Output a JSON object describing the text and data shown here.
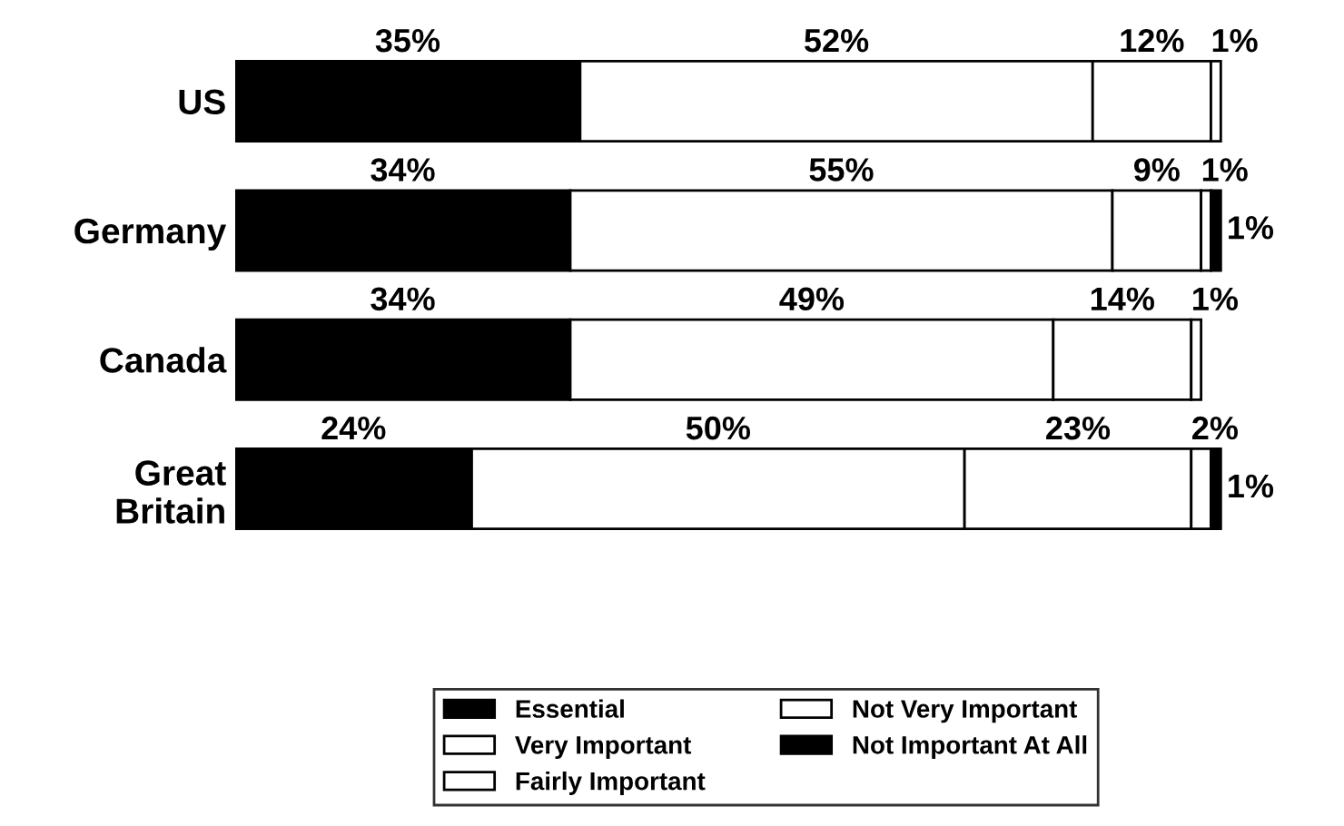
{
  "chart_data": {
    "type": "bar",
    "orientation": "horizontal",
    "stacked": true,
    "categories": [
      "US",
      "Germany",
      "Canada",
      "Great Britain"
    ],
    "series": [
      {
        "name": "Essential",
        "color": "#000000",
        "values": [
          35,
          34,
          34,
          24
        ],
        "value_labels": [
          "35%",
          "34%",
          "34%",
          "24%"
        ]
      },
      {
        "name": "Very Important",
        "color": "#ffffff",
        "values": [
          52,
          55,
          49,
          50
        ],
        "value_labels": [
          "52%",
          "55%",
          "49%",
          "50%"
        ]
      },
      {
        "name": "Fairly Important",
        "color": "#ffffff",
        "values": [
          12,
          9,
          14,
          23
        ],
        "value_labels": [
          "12%",
          "9%",
          "14%",
          "23%"
        ]
      },
      {
        "name": "Not Very Important",
        "color": "#ffffff",
        "values": [
          1,
          1,
          1,
          2
        ],
        "value_labels": [
          "1%",
          "1%",
          "1%",
          "2%"
        ]
      },
      {
        "name": "Not Important At All",
        "color": "#000000",
        "values": [
          null,
          1,
          null,
          1
        ],
        "value_labels": [
          null,
          "1%",
          null,
          "1%"
        ]
      }
    ],
    "legend": "bottom",
    "grid": false,
    "tick_labels": "y"
  }
}
